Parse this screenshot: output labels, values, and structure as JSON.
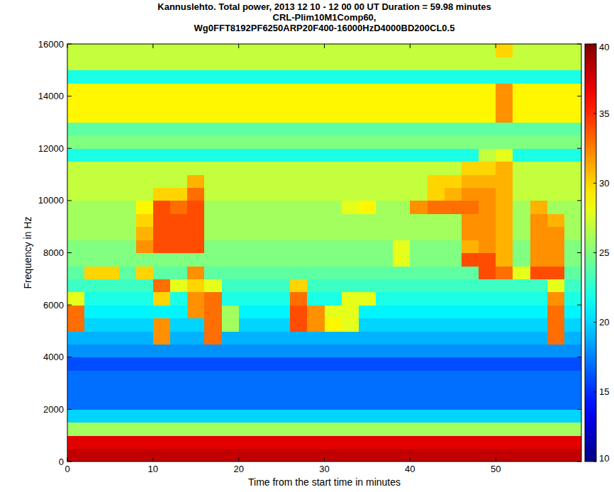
{
  "chart_data": {
    "type": "heatmap",
    "title": [
      "Kannuslehto. Total power, 2013 12 10 - 12 00 00 UT  Duration = 59.98 minutes",
      "CRL-Plim10M1Comp60,",
      "Wg0FFT8192PF6250ARP20F400-16000HzD4000BD200CL0.5"
    ],
    "x_label": "Time from the start time in minutes",
    "y_label": "Frequency in Hz",
    "xlim": [
      0,
      60
    ],
    "xticks": [
      0,
      10,
      20,
      30,
      40,
      50
    ],
    "ylim": [
      0,
      16000
    ],
    "yticks": [
      0,
      2000,
      4000,
      6000,
      8000,
      10000,
      12000,
      14000,
      16000
    ],
    "x": [
      1,
      3,
      5,
      7,
      9,
      11,
      13,
      15,
      17,
      19,
      21,
      23,
      25,
      27,
      29,
      31,
      33,
      35,
      37,
      39,
      41,
      43,
      45,
      47,
      49,
      51,
      53,
      55,
      57,
      59
    ],
    "y": [
      250,
      750,
      1250,
      1750,
      2250,
      2750,
      3250,
      3750,
      4250,
      4750,
      5250,
      5750,
      6250,
      6750,
      7250,
      7750,
      8250,
      8750,
      9250,
      9750,
      10250,
      10750,
      11250,
      11750,
      12250,
      12750,
      13250,
      13750,
      14250,
      14750,
      15250,
      15750
    ],
    "values": [
      [
        38,
        38,
        38,
        38,
        38,
        38,
        38,
        38,
        38,
        38,
        38,
        38,
        38,
        38,
        38,
        38,
        38,
        38,
        38,
        38,
        38,
        38,
        38,
        38,
        38,
        38,
        38,
        38,
        38,
        38
      ],
      [
        37,
        37,
        37,
        37,
        37,
        37,
        37,
        37,
        37,
        37,
        37,
        37,
        37,
        37,
        37,
        37,
        37,
        37,
        37,
        37,
        37,
        37,
        37,
        37,
        37,
        37,
        37,
        37,
        37,
        37
      ],
      [
        26,
        26,
        26,
        26,
        26,
        26,
        26,
        26,
        26,
        26,
        26,
        26,
        26,
        26,
        26,
        26,
        26,
        26,
        26,
        26,
        26,
        26,
        26,
        26,
        26,
        26,
        26,
        26,
        26,
        26
      ],
      [
        20,
        20,
        20,
        20,
        20,
        20,
        20,
        20,
        20,
        20,
        20,
        20,
        20,
        20,
        20,
        20,
        20,
        20,
        20,
        20,
        20,
        20,
        20,
        20,
        20,
        20,
        20,
        20,
        20,
        20
      ],
      [
        17,
        17,
        17,
        17,
        17,
        17,
        17,
        17,
        17,
        17,
        17,
        17,
        17,
        17,
        17,
        17,
        17,
        17,
        17,
        17,
        17,
        17,
        17,
        17,
        17,
        17,
        17,
        17,
        17,
        17
      ],
      [
        17,
        17,
        17,
        17,
        17,
        17,
        17,
        17,
        17,
        17,
        17,
        17,
        17,
        17,
        17,
        17,
        17,
        17,
        17,
        17,
        17,
        17,
        17,
        17,
        17,
        17,
        17,
        17,
        17,
        17
      ],
      [
        17,
        17,
        17,
        17,
        17,
        17,
        17,
        17,
        17,
        17,
        17,
        17,
        17,
        17,
        17,
        17,
        17,
        17,
        17,
        17,
        17,
        17,
        17,
        17,
        17,
        17,
        17,
        17,
        17,
        17
      ],
      [
        16,
        16,
        16,
        16,
        16,
        16,
        16,
        16,
        16,
        16,
        16,
        16,
        16,
        16,
        16,
        16,
        16,
        16,
        16,
        16,
        16,
        16,
        16,
        16,
        16,
        16,
        16,
        16,
        16,
        16
      ],
      [
        18,
        18,
        18,
        18,
        18,
        18,
        18,
        18,
        18,
        18,
        18,
        18,
        18,
        18,
        18,
        18,
        18,
        18,
        18,
        18,
        18,
        18,
        18,
        18,
        18,
        18,
        18,
        18,
        18,
        18
      ],
      [
        19,
        19,
        19,
        19,
        19,
        32,
        19,
        19,
        33,
        19,
        19,
        19,
        19,
        19,
        19,
        19,
        19,
        19,
        19,
        19,
        19,
        19,
        19,
        19,
        19,
        19,
        19,
        19,
        33,
        19
      ],
      [
        33,
        20,
        20,
        20,
        20,
        32,
        20,
        20,
        33,
        26,
        20,
        20,
        20,
        34,
        32,
        29,
        28,
        20,
        20,
        20,
        20,
        20,
        20,
        20,
        20,
        20,
        20,
        20,
        33,
        20
      ],
      [
        33,
        21,
        21,
        21,
        21,
        21,
        21,
        32,
        33,
        26,
        21,
        21,
        21,
        34,
        32,
        28,
        28,
        21,
        21,
        21,
        21,
        21,
        21,
        21,
        21,
        21,
        21,
        21,
        33,
        21
      ],
      [
        28,
        22,
        22,
        22,
        22,
        30,
        22,
        32,
        33,
        22,
        22,
        22,
        22,
        33,
        22,
        22,
        28,
        28,
        22,
        22,
        22,
        22,
        22,
        22,
        22,
        22,
        22,
        22,
        32,
        22
      ],
      [
        23,
        23,
        23,
        23,
        23,
        33,
        28,
        30,
        28,
        23,
        23,
        23,
        23,
        30,
        23,
        23,
        23,
        23,
        23,
        23,
        23,
        23,
        23,
        23,
        23,
        23,
        23,
        23,
        28,
        23
      ],
      [
        24,
        30,
        30,
        24,
        30,
        24,
        24,
        32,
        24,
        24,
        24,
        24,
        24,
        24,
        24,
        24,
        24,
        24,
        24,
        24,
        24,
        24,
        24,
        24,
        34,
        33,
        28,
        34,
        34,
        24
      ],
      [
        25,
        25,
        25,
        25,
        25,
        25,
        25,
        25,
        25,
        25,
        25,
        25,
        25,
        25,
        25,
        25,
        25,
        25,
        25,
        28,
        25,
        25,
        25,
        34,
        34,
        31,
        25,
        32,
        32,
        25
      ],
      [
        25,
        25,
        25,
        25,
        32,
        34,
        34,
        34,
        25,
        25,
        25,
        25,
        25,
        25,
        25,
        25,
        25,
        25,
        25,
        28,
        25,
        25,
        25,
        31,
        32,
        31,
        25,
        32,
        32,
        25
      ],
      [
        26,
        26,
        26,
        26,
        31,
        34,
        34,
        34,
        26,
        26,
        26,
        26,
        26,
        26,
        26,
        26,
        26,
        26,
        26,
        26,
        26,
        26,
        26,
        32,
        32,
        31,
        26,
        32,
        32,
        26
      ],
      [
        26,
        26,
        26,
        26,
        30,
        34,
        34,
        34,
        26,
        26,
        26,
        26,
        26,
        26,
        26,
        26,
        26,
        26,
        26,
        26,
        26,
        26,
        26,
        32,
        32,
        31,
        26,
        32,
        31,
        26
      ],
      [
        26,
        26,
        26,
        26,
        29,
        34,
        33,
        34,
        26,
        26,
        26,
        26,
        26,
        26,
        26,
        26,
        28,
        29,
        26,
        26,
        32,
        33,
        33,
        33,
        32,
        31,
        26,
        31,
        26,
        26
      ],
      [
        27,
        27,
        27,
        27,
        27,
        30,
        30,
        33,
        27,
        27,
        27,
        27,
        27,
        27,
        27,
        27,
        27,
        27,
        27,
        27,
        27,
        30,
        31,
        32,
        32,
        31,
        27,
        27,
        27,
        27
      ],
      [
        27,
        27,
        27,
        27,
        27,
        27,
        27,
        31,
        27,
        27,
        27,
        27,
        27,
        27,
        27,
        27,
        27,
        27,
        27,
        27,
        27,
        30,
        30,
        31,
        31,
        31,
        27,
        27,
        27,
        27
      ],
      [
        27,
        27,
        27,
        27,
        27,
        27,
        27,
        27,
        27,
        27,
        27,
        27,
        27,
        27,
        27,
        27,
        27,
        27,
        27,
        27,
        27,
        27,
        27,
        30,
        30,
        31,
        27,
        27,
        27,
        27
      ],
      [
        22,
        22,
        22,
        22,
        22,
        22,
        22,
        22,
        22,
        22,
        22,
        22,
        22,
        22,
        22,
        22,
        22,
        22,
        22,
        22,
        22,
        22,
        22,
        22,
        27,
        28,
        22,
        22,
        22,
        22
      ],
      [
        25,
        25,
        25,
        25,
        25,
        25,
        25,
        25,
        25,
        25,
        25,
        25,
        25,
        25,
        25,
        25,
        25,
        25,
        25,
        25,
        25,
        25,
        25,
        25,
        25,
        25,
        25,
        25,
        25,
        25
      ],
      [
        24,
        24,
        24,
        24,
        24,
        24,
        24,
        24,
        24,
        24,
        24,
        24,
        24,
        24,
        24,
        24,
        24,
        24,
        24,
        24,
        24,
        24,
        24,
        24,
        24,
        24,
        24,
        24,
        24,
        24
      ],
      [
        29,
        29,
        29,
        29,
        29,
        29,
        29,
        29,
        29,
        29,
        29,
        29,
        29,
        29,
        29,
        29,
        29,
        29,
        29,
        29,
        29,
        29,
        29,
        29,
        29,
        32,
        29,
        29,
        29,
        29
      ],
      [
        29,
        29,
        29,
        29,
        29,
        29,
        29,
        29,
        29,
        29,
        29,
        29,
        29,
        29,
        29,
        29,
        29,
        29,
        29,
        29,
        29,
        29,
        29,
        29,
        29,
        32,
        29,
        29,
        29,
        29
      ],
      [
        29,
        29,
        29,
        29,
        29,
        29,
        29,
        29,
        29,
        29,
        29,
        29,
        29,
        29,
        29,
        29,
        29,
        29,
        29,
        29,
        29,
        29,
        29,
        29,
        29,
        32,
        29,
        29,
        29,
        29
      ],
      [
        22,
        22,
        22,
        22,
        22,
        22,
        22,
        22,
        22,
        22,
        22,
        22,
        22,
        22,
        22,
        22,
        22,
        22,
        22,
        22,
        22,
        22,
        22,
        22,
        22,
        22,
        22,
        22,
        22,
        22
      ],
      [
        27,
        27,
        27,
        27,
        27,
        27,
        27,
        27,
        27,
        27,
        27,
        27,
        27,
        27,
        27,
        27,
        27,
        27,
        27,
        27,
        27,
        27,
        27,
        27,
        27,
        27,
        27,
        27,
        27,
        27
      ],
      [
        27,
        27,
        27,
        27,
        27,
        27,
        27,
        27,
        27,
        27,
        27,
        27,
        27,
        27,
        27,
        27,
        27,
        27,
        27,
        27,
        27,
        27,
        27,
        27,
        27,
        30,
        27,
        27,
        27,
        27
      ]
    ],
    "colorbar": {
      "range": [
        10,
        40
      ],
      "ticks": [
        10,
        15,
        20,
        25,
        30,
        35,
        40
      ]
    }
  }
}
